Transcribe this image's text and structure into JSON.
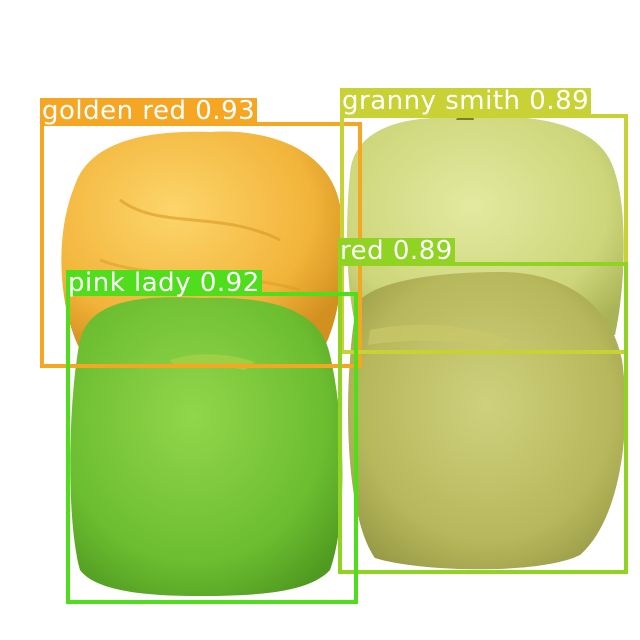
{
  "detections": [
    {
      "label": "golden red 0.93",
      "color": "#f5a623"
    },
    {
      "label": "granny smith 0.89",
      "color": "#c9d235"
    },
    {
      "label": "red 0.89",
      "color": "#90d322"
    },
    {
      "label": "pink lady 0.92",
      "color": "#4fdd1c"
    }
  ],
  "fruits": [
    {
      "name": "yellow-apple",
      "color": "#f2b93a"
    },
    {
      "name": "pale-green-apple",
      "color": "#cdd67a"
    },
    {
      "name": "olive-green-apple",
      "color": "#b9bd5e"
    },
    {
      "name": "green-apple",
      "color": "#73c236"
    }
  ]
}
